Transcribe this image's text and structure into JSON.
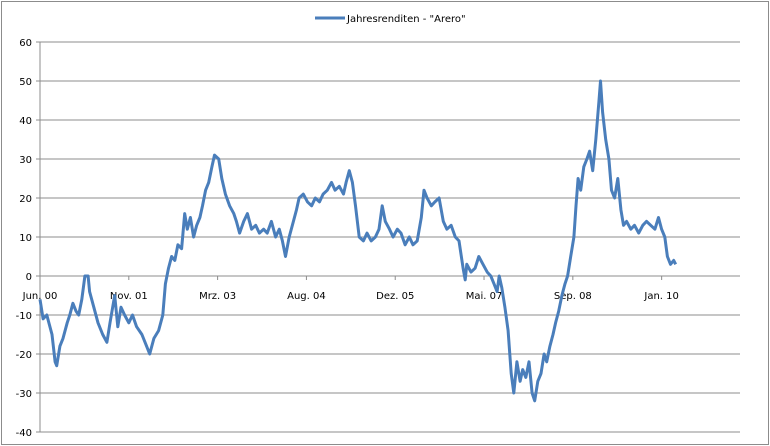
{
  "chart_data": {
    "type": "line",
    "title": "",
    "xlabel": "",
    "ylabel": "",
    "legend": {
      "position": "top",
      "entries": [
        "Jahresrenditen - \"Arero\""
      ]
    },
    "grid": true,
    "ylim": [
      -40,
      60
    ],
    "yticks": [
      -40,
      -30,
      -20,
      -10,
      0,
      10,
      20,
      30,
      40,
      50,
      60
    ],
    "xlim_months": [
      0,
      134
    ],
    "xticks": [
      {
        "month": 0,
        "label": "Jun. 00"
      },
      {
        "month": 17,
        "label": "Nov. 01"
      },
      {
        "month": 34,
        "label": "Mrz. 03"
      },
      {
        "month": 51,
        "label": "Aug. 04"
      },
      {
        "month": 68,
        "label": "Dez. 05"
      },
      {
        "month": 85,
        "label": "Mai. 07"
      },
      {
        "month": 102,
        "label": "Sep. 08"
      },
      {
        "month": 119,
        "label": "Jan. 10"
      }
    ],
    "series": [
      {
        "name": "Jahresrenditen - \"Arero\"",
        "color": "#4a7ebb",
        "x": [
          0,
          0.6,
          1.3,
          2.3,
          2.9,
          3.2,
          3.8,
          4.4,
          5.2,
          5.7,
          6.3,
          6.9,
          7.4,
          8.0,
          8.6,
          9.2,
          9.5,
          10.3,
          11.1,
          12.0,
          12.8,
          13.4,
          14.3,
          14.9,
          15.5,
          16.2,
          17.0,
          17.7,
          18.5,
          19.5,
          20.4,
          21.0,
          21.8,
          22.7,
          23.5,
          24.0,
          24.6,
          25.2,
          25.8,
          26.4,
          27.1,
          27.7,
          28.2,
          28.8,
          29.4,
          30.0,
          30.6,
          31.1,
          31.7,
          32.3,
          32.9,
          33.4,
          34.2,
          34.8,
          35.5,
          36.3,
          37.1,
          37.6,
          38.2,
          39.0,
          39.7,
          40.5,
          41.3,
          42.0,
          42.8,
          43.5,
          44.3,
          45.1,
          45.8,
          46.4,
          47.0,
          47.7,
          48.5,
          49.1,
          49.6,
          50.4,
          51.2,
          52.0,
          52.7,
          53.5,
          54.2,
          55.0,
          55.8,
          56.5,
          57.3,
          58.1,
          58.6,
          59.2,
          59.8,
          60.4,
          61.1,
          61.9,
          62.6,
          63.4,
          64.2,
          64.9,
          65.5,
          66.1,
          66.9,
          67.6,
          68.4,
          69.1,
          69.9,
          70.7,
          71.4,
          72.2,
          73.0,
          73.5,
          74.1,
          74.9,
          75.6,
          76.4,
          77.2,
          77.9,
          78.7,
          79.5,
          80.2,
          81.0,
          81.4,
          81.7,
          82.5,
          83.3,
          84.0,
          84.8,
          85.6,
          86.3,
          86.9,
          87.5,
          87.9,
          88.4,
          89.0,
          89.6,
          90.2,
          90.7,
          91.3,
          91.9,
          92.4,
          93.0,
          93.6,
          94.2,
          94.7,
          95.3,
          95.9,
          96.5,
          97.0,
          97.6,
          98.2,
          98.7,
          99.3,
          99.9,
          100.5,
          101.0,
          101.6,
          102.2,
          102.6,
          103.0,
          103.5,
          104.1,
          104.7,
          105.2,
          105.8,
          106.4,
          107.0,
          107.3,
          107.7,
          108.3,
          108.9,
          109.4,
          110.0,
          110.6,
          111.2,
          111.7,
          112.3,
          113.1,
          113.8,
          114.6,
          115.4,
          116.1,
          116.9,
          117.7,
          118.4,
          119.0,
          119.6,
          120.1,
          120.7,
          121.3,
          121.7
        ],
        "y": [
          -6,
          -11,
          -10,
          -15,
          -22,
          -23,
          -18,
          -16,
          -12,
          -10,
          -7,
          -9,
          -10,
          -6,
          0,
          0,
          -4,
          -8,
          -12,
          -15,
          -17,
          -12,
          -5,
          -13,
          -8,
          -10,
          -12,
          -10,
          -13,
          -15,
          -18,
          -20,
          -16,
          -14,
          -10,
          -2,
          2,
          5,
          4,
          8,
          7,
          16,
          12,
          15,
          10,
          13,
          15,
          18,
          22,
          24,
          28,
          31,
          30,
          25,
          21,
          18,
          16,
          14,
          11,
          14,
          16,
          12,
          13,
          11,
          12,
          11,
          14,
          10,
          12,
          9,
          5,
          10,
          14,
          17,
          20,
          21,
          19,
          18,
          20,
          19,
          21,
          22,
          24,
          22,
          23,
          21,
          24,
          27,
          24,
          18,
          10,
          9,
          11,
          9,
          10,
          12,
          18,
          14,
          12,
          10,
          12,
          11,
          8,
          10,
          8,
          9,
          15,
          22,
          20,
          18,
          19,
          20,
          14,
          12,
          13,
          10,
          9,
          2,
          -1,
          3,
          1,
          2,
          5,
          3,
          1,
          0,
          -2,
          -4,
          0,
          -3,
          -8,
          -14,
          -25,
          -30,
          -22,
          -27,
          -24,
          -26,
          -22,
          -30,
          -32,
          -27,
          -25,
          -20,
          -22,
          -18,
          -15,
          -12,
          -9,
          -5,
          -2,
          0,
          5,
          10,
          18,
          25,
          22,
          28,
          30,
          32,
          27,
          35,
          45,
          50,
          42,
          35,
          30,
          22,
          20,
          25,
          17,
          13,
          14,
          12,
          13,
          11,
          13,
          14,
          13,
          12,
          15,
          12,
          10,
          5,
          3,
          4,
          3
        ]
      }
    ]
  }
}
